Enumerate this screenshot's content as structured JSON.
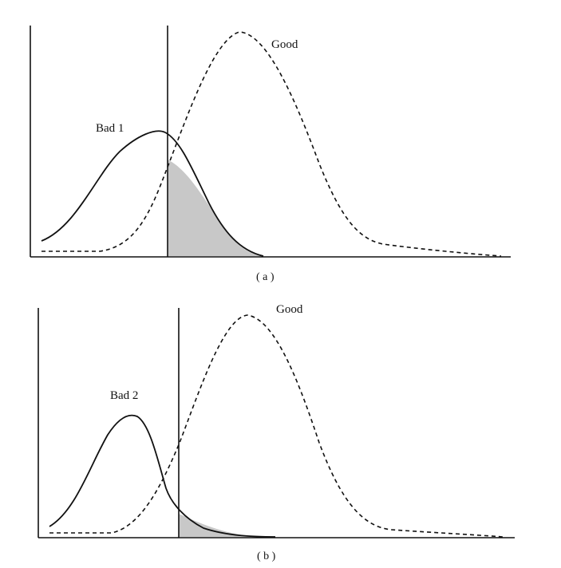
{
  "panels": [
    {
      "id": "a",
      "caption": "( a )",
      "bad_label": "Bad 1",
      "good_label": "Good"
    },
    {
      "id": "b",
      "caption": "( b )",
      "bad_label": "Bad 2",
      "good_label": "Good"
    }
  ],
  "colors": {
    "curve": "#111111",
    "overlap_shade": "#c8c8c8",
    "background": "#ffffff"
  }
}
